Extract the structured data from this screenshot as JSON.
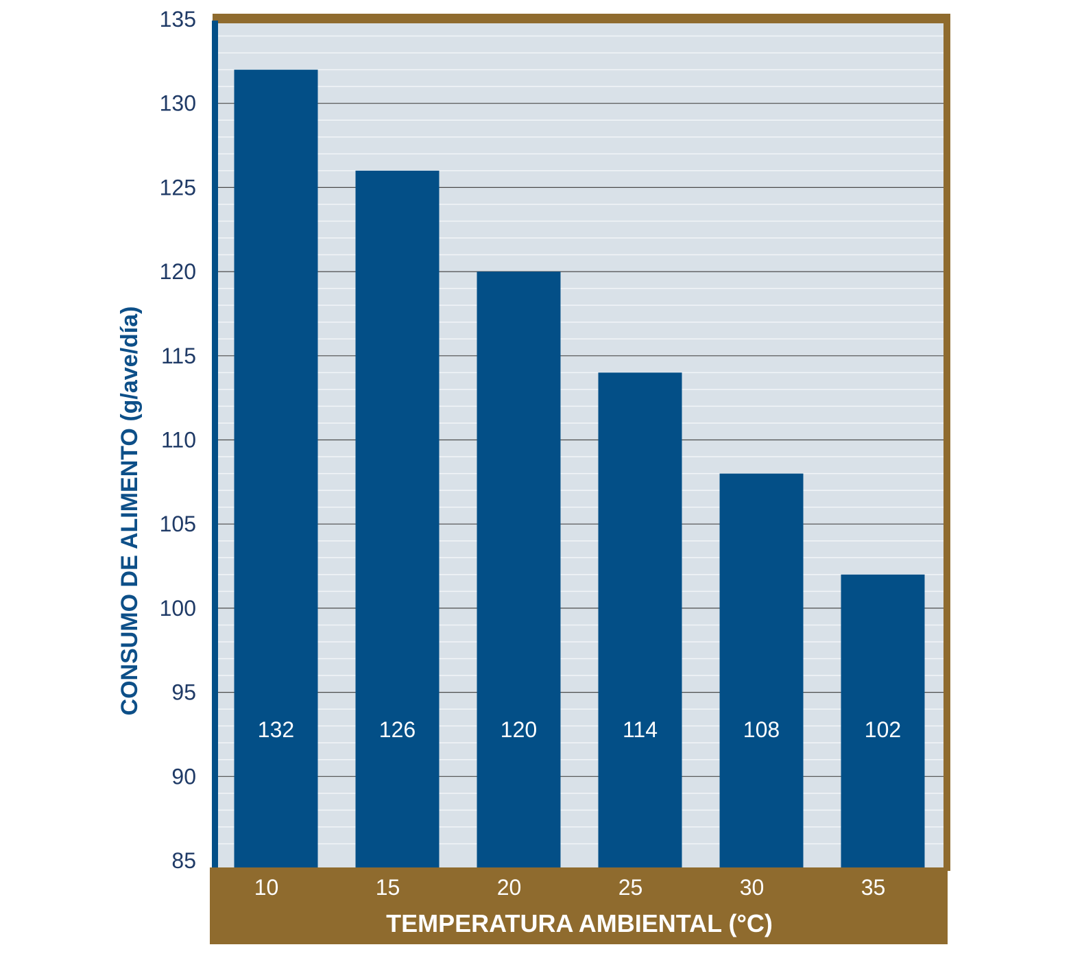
{
  "colors": {
    "plot_bg": "#d9e1e8",
    "bar": "#034f87",
    "frame": "#8f6b2e",
    "grid_major": "#4a4a4a",
    "grid_minor": "#f2f5f8",
    "tick_text": "#1f3a66",
    "axis_title": "#0d4f88"
  },
  "chart_data": {
    "type": "bar",
    "title": "",
    "xlabel": "TEMPERATURA AMBIENTAL (°C)",
    "ylabel": "CONSUMO DE ALIMENTO (g/ave/día)",
    "categories": [
      "10",
      "15",
      "20",
      "25",
      "30",
      "35"
    ],
    "values": [
      132,
      126,
      120,
      114,
      108,
      102
    ],
    "value_labels": [
      "132",
      "126",
      "120",
      "114",
      "108",
      "102"
    ],
    "ylim": [
      85,
      135
    ],
    "yticks": [
      "85",
      "90",
      "95",
      "100",
      "105",
      "110",
      "115",
      "120",
      "125",
      "130",
      "135"
    ],
    "grid": true
  }
}
